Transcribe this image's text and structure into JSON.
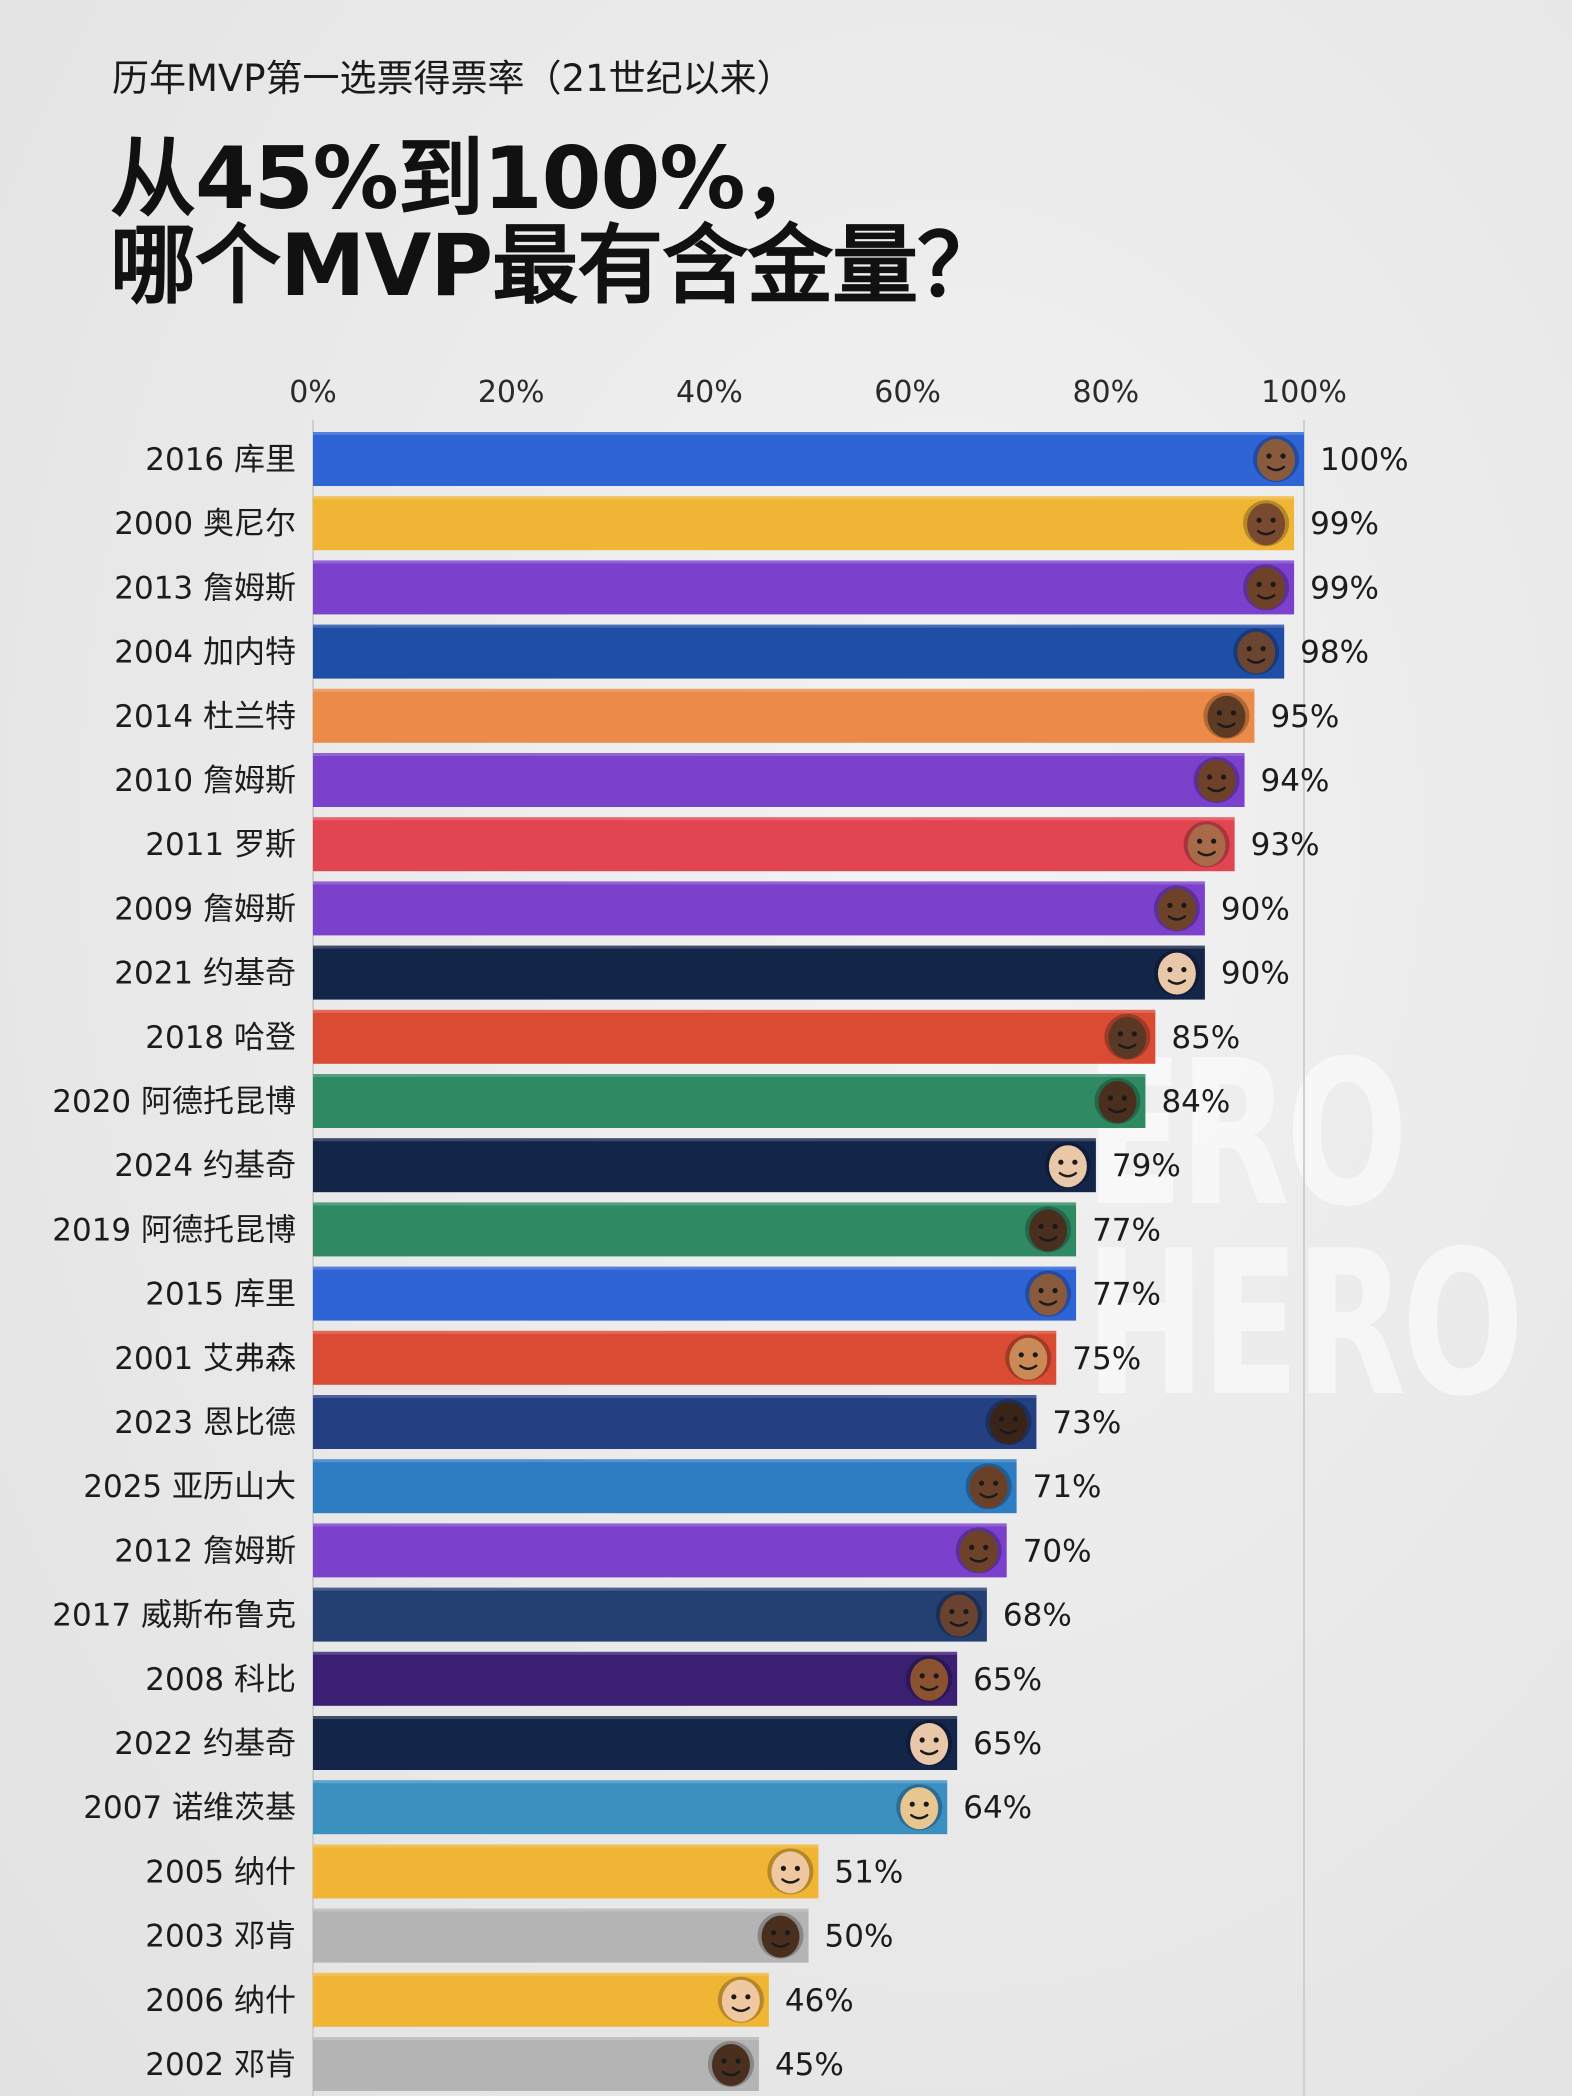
{
  "header": {
    "subtitle": "历年MVP第一选票得票率（21世纪以来）",
    "title_line1": "从45%到100%，",
    "title_line2": "哪个MVP最有含金量？"
  },
  "watermark": {
    "line1": "ERO",
    "line2": "HERO"
  },
  "chart_data": {
    "type": "bar",
    "orientation": "horizontal",
    "title": "历年MVP第一选票得票率（21世纪以来）",
    "xlim": [
      0,
      100
    ],
    "x_ticks": [
      0,
      20,
      40,
      60,
      80,
      100
    ],
    "x_tick_labels": [
      "0%",
      "20%",
      "40%",
      "60%",
      "80%",
      "100%"
    ],
    "grid": "vertical gridlines at 0 and 100",
    "categories": [
      "2016 库里",
      "2000 奥尼尔",
      "2013 詹姆斯",
      "2004 加内特",
      "2014 杜兰特",
      "2010 詹姆斯",
      "2011 罗斯",
      "2009 詹姆斯",
      "2021 约基奇",
      "2018 哈登",
      "2020 阿德托昆博",
      "2024 约基奇",
      "2019 阿德托昆博",
      "2015 库里",
      "2001 艾弗森",
      "2023 恩比德",
      "2025 亚历山大",
      "2012 詹姆斯",
      "2017 威斯布鲁克",
      "2008 科比",
      "2022 约基奇",
      "2007 诺维茨基",
      "2005 纳什",
      "2003 邓肯",
      "2006 纳什",
      "2002 邓肯"
    ],
    "values": [
      100,
      99,
      99,
      98,
      95,
      94,
      93,
      90,
      90,
      85,
      84,
      79,
      77,
      77,
      75,
      73,
      71,
      70,
      68,
      65,
      65,
      64,
      51,
      50,
      46,
      45
    ],
    "value_labels": [
      "100%",
      "99%",
      "99%",
      "98%",
      "95%",
      "94%",
      "93%",
      "90%",
      "90%",
      "85%",
      "84%",
      "79%",
      "77%",
      "77%",
      "75%",
      "73%",
      "71%",
      "70%",
      "68%",
      "65%",
      "65%",
      "64%",
      "51%",
      "50%",
      "46%",
      "45%"
    ],
    "bar_colors": [
      "#2f64d6",
      "#f0b535",
      "#7c41cc",
      "#1e4ea6",
      "#ec8a48",
      "#7c41cc",
      "#e04551",
      "#7c41cc",
      "#14254a",
      "#d94c33",
      "#2f8a64",
      "#14254a",
      "#2f8a64",
      "#2f64d6",
      "#d94c33",
      "#243f82",
      "#2e7dc2",
      "#7c41cc",
      "#243f72",
      "#3a1f72",
      "#14254a",
      "#3b90c0",
      "#f0b535",
      "#b4b4b4",
      "#f0b535",
      "#b4b4b4"
    ],
    "avatar_icons": [
      "player-face-icon",
      "player-face-icon",
      "player-face-icon",
      "player-face-icon",
      "player-face-icon",
      "player-face-icon",
      "player-face-icon",
      "player-face-icon",
      "player-face-icon",
      "player-face-icon",
      "player-face-icon",
      "player-face-icon",
      "player-face-icon",
      "player-face-icon",
      "player-face-icon",
      "player-face-icon",
      "player-face-icon",
      "player-face-icon",
      "player-face-icon",
      "player-face-icon",
      "player-face-icon",
      "player-face-icon",
      "player-face-icon",
      "player-face-icon",
      "player-face-icon",
      "player-face-icon"
    ],
    "avatar_skin": [
      "#8a5a3c",
      "#7a4a30",
      "#6e4129",
      "#6b4530",
      "#5c3a24",
      "#6e4129",
      "#a86a48",
      "#6e4129",
      "#e8c8a8",
      "#5a3826",
      "#4a2e1e",
      "#e8c8a8",
      "#4a2e1e",
      "#8a5a3c",
      "#c98a58",
      "#3a2418",
      "#6a4028",
      "#6e4129",
      "#6a4230",
      "#8a5230",
      "#e8c8a8",
      "#e8c690",
      "#f0c8a0",
      "#4a2e1e",
      "#f0c8a0",
      "#4a2e1e"
    ]
  }
}
